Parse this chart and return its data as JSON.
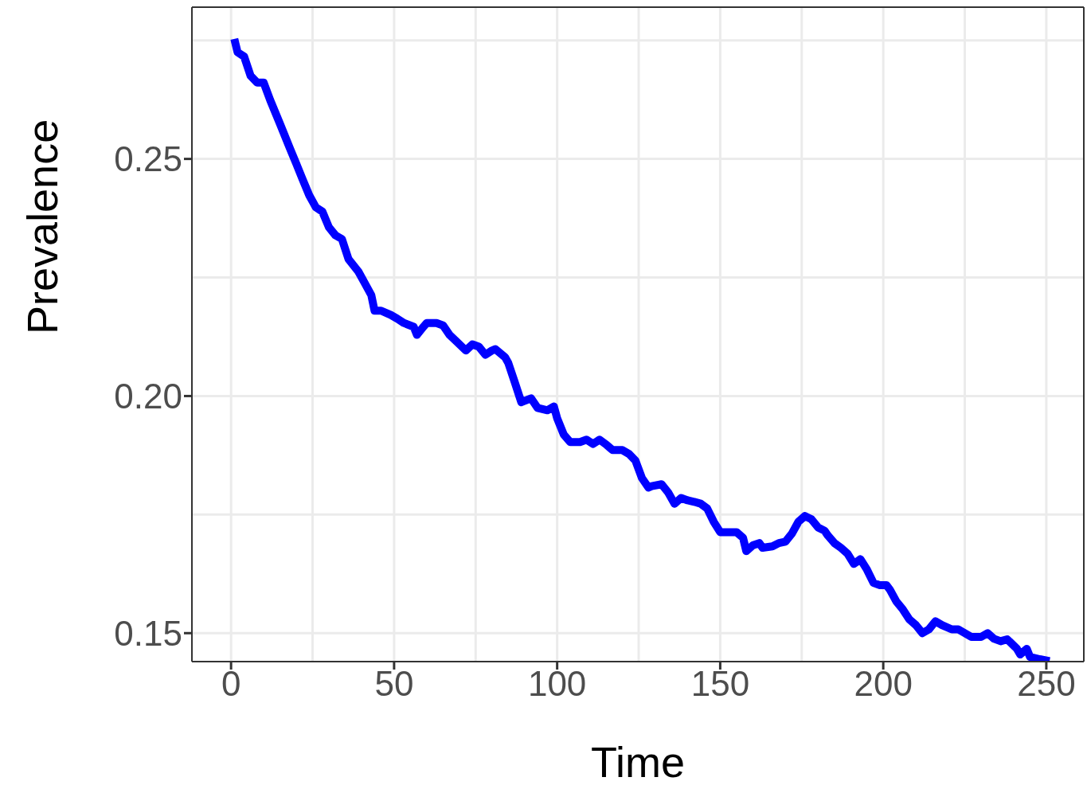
{
  "chart_data": {
    "type": "line",
    "xlabel": "Time",
    "ylabel": "Prevalence",
    "x": [
      1,
      2,
      4,
      6,
      8,
      10,
      12,
      15,
      18,
      20,
      22,
      24,
      26,
      28,
      30,
      32,
      34,
      36,
      39,
      41,
      43,
      44,
      46,
      49,
      51,
      53,
      56,
      57,
      59,
      60,
      63,
      65,
      67,
      69,
      72,
      74,
      76,
      78,
      80,
      81,
      84,
      85,
      87,
      89,
      92,
      94,
      97,
      99,
      100,
      102,
      104,
      107,
      109,
      111,
      113,
      115,
      117,
      120,
      122,
      124,
      126,
      128,
      129,
      132,
      134,
      136,
      138,
      140,
      142,
      144,
      146,
      148,
      150,
      153,
      155,
      157,
      158,
      160,
      162,
      163,
      166,
      168,
      170,
      172,
      174,
      176,
      178,
      180,
      182,
      183,
      185,
      187,
      189,
      191,
      193,
      195,
      197,
      199,
      201,
      202,
      204,
      206,
      208,
      210,
      212,
      214,
      216,
      218,
      221,
      223,
      225,
      227,
      230,
      232,
      234,
      236,
      238,
      241,
      242,
      244,
      245,
      248,
      251
    ],
    "series": [
      {
        "color": "#0000ff",
        "values": [
          0.2753,
          0.2725,
          0.2716,
          0.2675,
          0.2661,
          0.2661,
          0.2624,
          0.2574,
          0.2523,
          0.249,
          0.2456,
          0.2423,
          0.2398,
          0.2389,
          0.2356,
          0.2339,
          0.2331,
          0.2289,
          0.2263,
          0.2238,
          0.2213,
          0.218,
          0.218,
          0.2171,
          0.2163,
          0.2154,
          0.2146,
          0.2129,
          0.2146,
          0.2154,
          0.2154,
          0.2149,
          0.2129,
          0.2116,
          0.2096,
          0.2109,
          0.2104,
          0.2087,
          0.2096,
          0.2099,
          0.2082,
          0.207,
          0.2029,
          0.1987,
          0.1995,
          0.1975,
          0.197,
          0.1978,
          0.1953,
          0.1919,
          0.1903,
          0.1903,
          0.1908,
          0.1899,
          0.1908,
          0.1898,
          0.1886,
          0.1886,
          0.1878,
          0.1864,
          0.1827,
          0.1807,
          0.181,
          0.1814,
          0.1797,
          0.1773,
          0.1785,
          0.178,
          0.1777,
          0.1773,
          0.1763,
          0.1735,
          0.1713,
          0.1713,
          0.1713,
          0.1701,
          0.1673,
          0.1685,
          0.169,
          0.168,
          0.1683,
          0.169,
          0.1693,
          0.171,
          0.1735,
          0.1747,
          0.174,
          0.1723,
          0.1716,
          0.1706,
          0.169,
          0.168,
          0.1668,
          0.1646,
          0.1656,
          0.1634,
          0.1606,
          0.1601,
          0.1601,
          0.1592,
          0.1567,
          0.155,
          0.1529,
          0.1517,
          0.15,
          0.1508,
          0.1525,
          0.1517,
          0.1508,
          0.1508,
          0.15,
          0.1492,
          0.1492,
          0.15,
          0.1488,
          0.1483,
          0.1487,
          0.1467,
          0.1455,
          0.1467,
          0.145,
          0.1445,
          0.1441
        ]
      }
    ],
    "xlim": [
      -12,
      261.5
    ],
    "ylim": [
      0.144,
      0.282
    ],
    "xticks": [
      0,
      50,
      100,
      150,
      200,
      250
    ],
    "yticks": [
      {
        "value": 0.15,
        "label": "0.15"
      },
      {
        "value": 0.2,
        "label": "0.20"
      },
      {
        "value": 0.25,
        "label": "0.25"
      }
    ],
    "grid": true,
    "legend": false,
    "marker": "none",
    "line_style": "solid"
  }
}
